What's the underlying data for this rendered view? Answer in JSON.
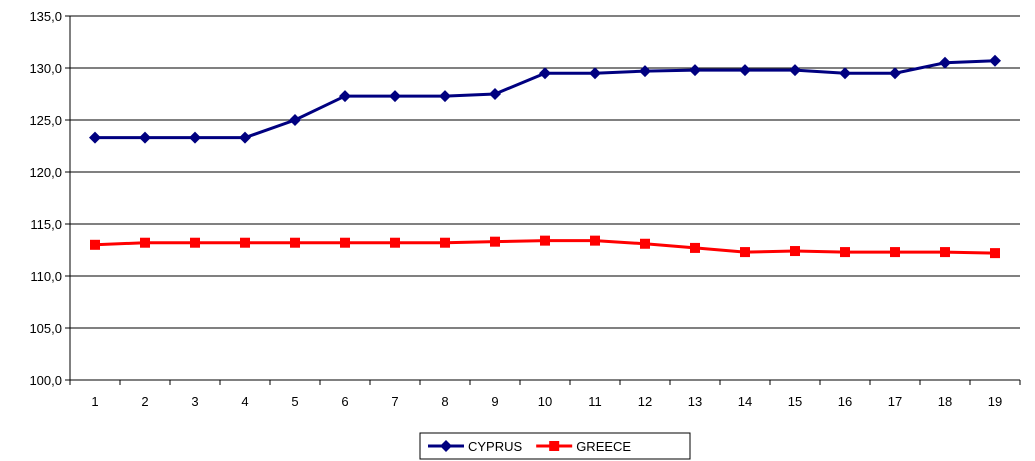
{
  "chart_data": {
    "type": "line",
    "title": "",
    "xlabel": "",
    "ylabel": "",
    "categories": [
      "1",
      "2",
      "3",
      "4",
      "5",
      "6",
      "7",
      "8",
      "9",
      "10",
      "11",
      "12",
      "13",
      "14",
      "15",
      "16",
      "17",
      "18",
      "19"
    ],
    "ylim": [
      100,
      135
    ],
    "yticks": [
      100,
      105,
      110,
      115,
      120,
      125,
      130,
      135
    ],
    "ytick_labels": [
      "100,0",
      "105,0",
      "110,0",
      "115,0",
      "120,0",
      "125,0",
      "130,0",
      "135,0"
    ],
    "grid": true,
    "legend_position": "bottom",
    "series": [
      {
        "name": "CYPRUS",
        "color": "#000080",
        "marker": "diamond",
        "values": [
          123.3,
          123.3,
          123.3,
          123.3,
          125.0,
          127.3,
          127.3,
          127.3,
          127.5,
          129.5,
          129.5,
          129.7,
          129.8,
          129.8,
          129.8,
          129.5,
          129.5,
          130.5,
          130.7
        ]
      },
      {
        "name": "GREECE",
        "color": "#ff0000",
        "marker": "square",
        "values": [
          113.0,
          113.2,
          113.2,
          113.2,
          113.2,
          113.2,
          113.2,
          113.2,
          113.3,
          113.4,
          113.4,
          113.1,
          112.7,
          112.3,
          112.4,
          112.3,
          112.3,
          112.3,
          112.2
        ]
      }
    ]
  }
}
